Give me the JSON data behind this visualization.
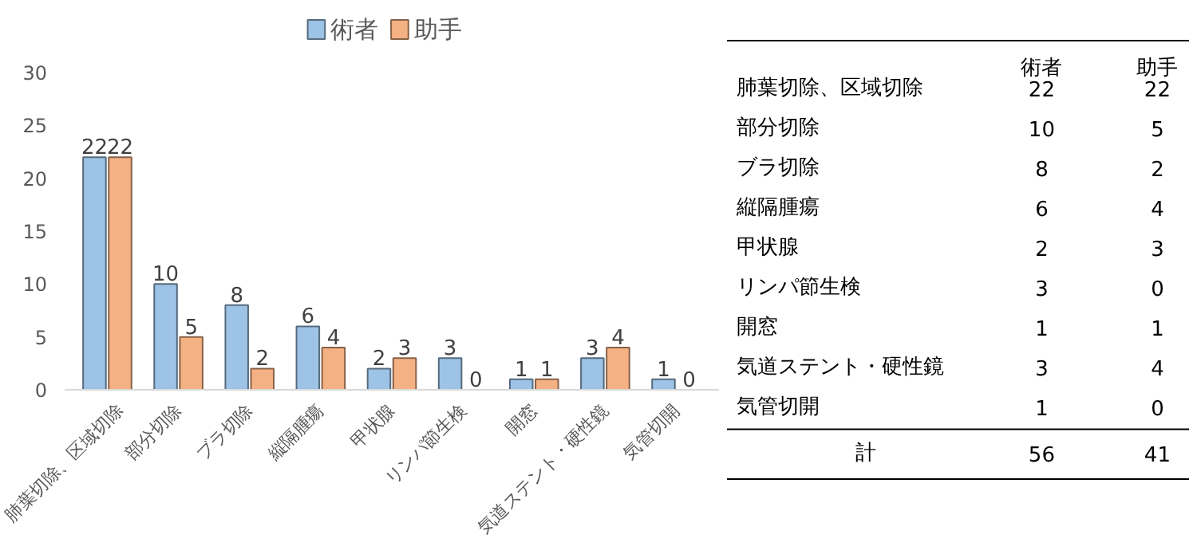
{
  "chart_data": [
    {
      "type": "bar",
      "categories": [
        "肺葉切除、区域切除",
        "部分切除",
        "ブラ切除",
        "縦隔腫瘍",
        "甲状腺",
        "リンパ節生検",
        "開窓",
        "気道ステント・硬性鏡",
        "気管切開"
      ],
      "series": [
        {
          "name": "術者",
          "color": "#9dc3e6",
          "values": [
            22,
            10,
            8,
            6,
            2,
            3,
            1,
            3,
            1
          ]
        },
        {
          "name": "助手",
          "color": "#f4b183",
          "values": [
            22,
            5,
            2,
            4,
            3,
            0,
            1,
            4,
            0
          ]
        }
      ],
      "ylim": [
        0,
        30
      ],
      "yticks": [
        0,
        5,
        10,
        15,
        20,
        25,
        30
      ],
      "legend": "top",
      "data_labels": true
    },
    {
      "type": "other",
      "categories": [
        "肺葉切除、区域切除",
        "部分切除",
        "ブラ切除",
        "縦隔腫瘍",
        "甲状腺",
        "リンパ節生検",
        "開窓",
        "気道ステント・硬性鏡",
        "気管切開"
      ],
      "series": [
        {
          "name": "術者",
          "values": [
            22,
            10,
            8,
            6,
            2,
            3,
            1,
            3,
            1
          ]
        },
        {
          "name": "助手",
          "values": [
            22,
            5,
            2,
            4,
            3,
            0,
            1,
            4,
            0
          ]
        }
      ],
      "data_labels": true,
      "annotations": [
        "計",
        "56",
        "41"
      ]
    }
  ]
}
